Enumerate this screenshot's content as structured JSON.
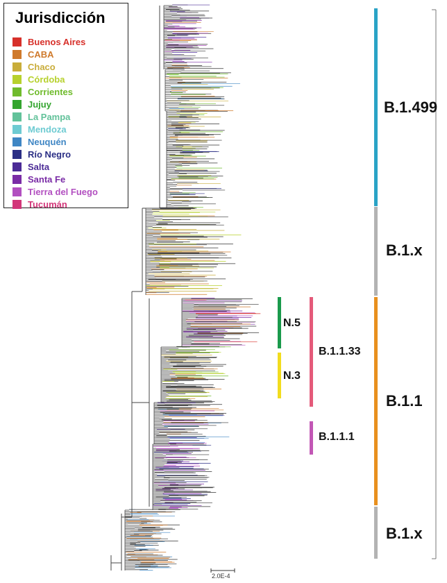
{
  "legend": {
    "title": "Jurisdicción",
    "items": [
      {
        "label": "Buenos Aires",
        "color": "#d7302a"
      },
      {
        "label": "CABA",
        "color": "#cf7a2c"
      },
      {
        "label": "Chaco",
        "color": "#c9ad3a"
      },
      {
        "label": "Córdoba",
        "color": "#b7d12d"
      },
      {
        "label": "Corrientes",
        "color": "#6fbb2c"
      },
      {
        "label": "Jujuy",
        "color": "#34a52f"
      },
      {
        "label": "La Pampa",
        "color": "#62c29a"
      },
      {
        "label": "Mendoza",
        "color": "#6ecbd2"
      },
      {
        "label": "Neuquén",
        "color": "#3f86c4"
      },
      {
        "label": "Río Negro",
        "color": "#2b2f85"
      },
      {
        "label": "Salta",
        "color": "#4b2b96"
      },
      {
        "label": "Santa Fe",
        "color": "#7a2ca6"
      },
      {
        "label": "Tierra del Fuego",
        "color": "#b24fc0"
      },
      {
        "label": "Tucumán",
        "color": "#d23679"
      }
    ]
  },
  "lineages": {
    "b1499": {
      "label": "B.1.499",
      "color": "#2aa3c6"
    },
    "b1x_top": {
      "label": "B.1.x",
      "color": "#b3b3b3"
    },
    "b11": {
      "label": "B.1.1",
      "color": "#e8901e"
    },
    "b1133": {
      "label": "B.1.1.33",
      "color": "#e45a7a"
    },
    "n5": {
      "label": "N.5",
      "color": "#1a9a4c"
    },
    "n3": {
      "label": "N.3",
      "color": "#f2dc1e"
    },
    "b111": {
      "label": "B.1.1.1",
      "color": "#c257b5"
    },
    "b1x_bottom": {
      "label": "B.1.x",
      "color": "#b3b3b3"
    }
  },
  "scale_bar": {
    "label": "2.0E-4"
  }
}
